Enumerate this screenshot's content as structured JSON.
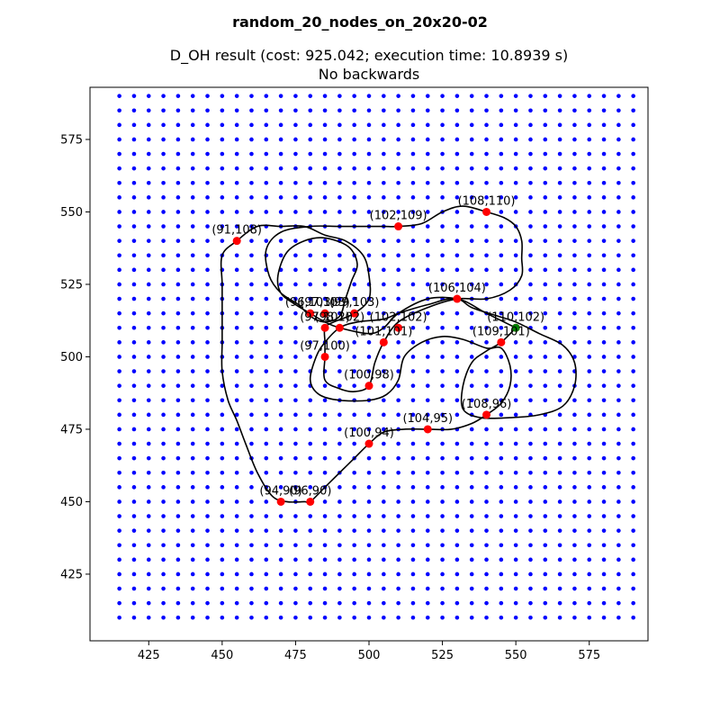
{
  "figure": {
    "suptitle": "random_20_nodes_on_20x20-02",
    "subtitle_line1": "D_OH result (cost: 925.042; execution time: 10.8939 s)",
    "subtitle_line2": "No backwards"
  },
  "chart_data": {
    "type": "scatter",
    "title": "random_20_nodes_on_20x20-02",
    "subtitle": "D_OH result (cost: 925.042; execution time: 10.8939 s)\nNo backwards",
    "xlabel": "",
    "ylabel": "",
    "xlim": [
      405,
      595
    ],
    "ylim": [
      402,
      593
    ],
    "xticks": [
      425,
      450,
      475,
      500,
      525,
      550,
      575
    ],
    "yticks": [
      425,
      450,
      475,
      500,
      525,
      550,
      575
    ],
    "grid": false,
    "legend": "none",
    "colors": {
      "grid_points": "#0000ff",
      "targets": "#ff0000",
      "start": "#008000",
      "path": "#000000"
    },
    "grid_points": {
      "x_start": 415,
      "x_end": 590,
      "x_step": 5,
      "y_start": 410,
      "y_end": 590,
      "y_step": 5
    },
    "targets": [
      {
        "label": "(91,108)",
        "x": 455,
        "y": 540
      },
      {
        "label": "(102,109)",
        "x": 510,
        "y": 545
      },
      {
        "label": "(108,110)",
        "x": 540,
        "y": 550
      },
      {
        "label": "(106,104)",
        "x": 530,
        "y": 520
      },
      {
        "label": "(110,102)",
        "x": 550,
        "y": 510
      },
      {
        "label": "(109,101)",
        "x": 545,
        "y": 505
      },
      {
        "label": "(96,103)",
        "x": 480,
        "y": 515
      },
      {
        "label": "(97,103)",
        "x": 485,
        "y": 515
      },
      {
        "label": "(99,103)",
        "x": 495,
        "y": 515
      },
      {
        "label": "(97,102)",
        "x": 485,
        "y": 510
      },
      {
        "label": "(98,102)",
        "x": 490,
        "y": 510
      },
      {
        "label": "(102,102)",
        "x": 510,
        "y": 510
      },
      {
        "label": "(101,101)",
        "x": 505,
        "y": 505
      },
      {
        "label": "(97,100)",
        "x": 485,
        "y": 500
      },
      {
        "label": "(100,98)",
        "x": 500,
        "y": 490
      },
      {
        "label": "(108,96)",
        "x": 540,
        "y": 480
      },
      {
        "label": "(104,95)",
        "x": 520,
        "y": 475
      },
      {
        "label": "(100,94)",
        "x": 500,
        "y": 470
      },
      {
        "label": "(94,90)",
        "x": 470,
        "y": 450
      },
      {
        "label": "(96,90)",
        "x": 480,
        "y": 450
      }
    ],
    "start": {
      "x": 550,
      "y": 510
    },
    "path": [
      [
        550,
        510
      ],
      [
        545,
        505
      ],
      [
        540,
        502
      ],
      [
        535,
        498
      ],
      [
        532,
        490
      ],
      [
        532,
        482
      ],
      [
        538,
        479
      ],
      [
        548,
        479
      ],
      [
        558,
        480
      ],
      [
        566,
        483
      ],
      [
        570,
        490
      ],
      [
        570,
        498
      ],
      [
        566,
        504
      ],
      [
        558,
        508
      ],
      [
        550,
        512
      ],
      [
        544,
        514
      ],
      [
        535,
        517
      ],
      [
        530,
        520
      ],
      [
        520,
        520
      ],
      [
        510,
        515
      ],
      [
        505,
        510
      ],
      [
        500,
        508
      ],
      [
        490,
        510
      ],
      [
        485,
        512
      ],
      [
        480,
        515
      ],
      [
        475,
        518
      ],
      [
        470,
        522
      ],
      [
        469,
        528
      ],
      [
        472,
        536
      ],
      [
        478,
        540
      ],
      [
        485,
        541
      ],
      [
        493,
        538
      ],
      [
        496,
        532
      ],
      [
        494,
        526
      ],
      [
        492,
        520
      ],
      [
        490,
        514
      ],
      [
        485,
        512
      ],
      [
        480,
        514
      ],
      [
        476,
        518
      ],
      [
        470,
        522
      ],
      [
        466,
        528
      ],
      [
        465,
        537
      ],
      [
        470,
        543
      ],
      [
        480,
        545
      ],
      [
        490,
        545
      ],
      [
        500,
        545
      ],
      [
        505,
        545
      ],
      [
        510,
        545
      ],
      [
        518,
        546
      ],
      [
        525,
        550
      ],
      [
        532,
        552
      ],
      [
        540,
        550
      ],
      [
        546,
        548
      ],
      [
        550,
        545
      ],
      [
        552,
        540
      ],
      [
        552,
        534
      ],
      [
        552,
        528
      ],
      [
        548,
        523
      ],
      [
        540,
        520
      ],
      [
        530,
        520
      ],
      [
        520,
        517
      ],
      [
        510,
        512
      ],
      [
        505,
        505
      ],
      [
        502,
        498
      ],
      [
        500,
        490
      ],
      [
        495,
        488
      ],
      [
        490,
        489
      ],
      [
        485,
        492
      ],
      [
        485,
        500
      ],
      [
        485,
        505
      ],
      [
        485,
        510
      ],
      [
        488,
        512
      ],
      [
        495,
        515
      ],
      [
        500,
        520
      ],
      [
        500,
        528
      ],
      [
        498,
        535
      ],
      [
        492,
        540
      ],
      [
        485,
        542
      ],
      [
        478,
        545
      ],
      [
        470,
        545
      ],
      [
        462,
        545
      ],
      [
        455,
        540
      ],
      [
        450,
        535
      ],
      [
        450,
        525
      ],
      [
        450,
        515
      ],
      [
        450,
        505
      ],
      [
        450,
        495
      ],
      [
        452,
        485
      ],
      [
        455,
        478
      ],
      [
        458,
        470
      ],
      [
        462,
        460
      ],
      [
        467,
        452
      ],
      [
        472,
        450
      ],
      [
        478,
        450
      ],
      [
        480,
        450
      ],
      [
        485,
        455
      ],
      [
        490,
        460
      ],
      [
        495,
        465
      ],
      [
        500,
        470
      ],
      [
        505,
        474
      ],
      [
        512,
        475
      ],
      [
        520,
        475
      ],
      [
        528,
        475
      ],
      [
        535,
        477
      ],
      [
        540,
        480
      ],
      [
        545,
        484
      ],
      [
        548,
        490
      ],
      [
        548,
        497
      ],
      [
        545,
        503
      ],
      [
        540,
        503
      ],
      [
        532,
        506
      ],
      [
        525,
        507
      ],
      [
        518,
        505
      ],
      [
        512,
        500
      ],
      [
        510,
        492
      ],
      [
        506,
        487
      ],
      [
        500,
        485
      ],
      [
        490,
        485
      ],
      [
        483,
        487
      ],
      [
        480,
        492
      ],
      [
        482,
        500
      ],
      [
        485,
        505
      ],
      [
        490,
        510
      ],
      [
        496,
        512
      ],
      [
        505,
        513
      ],
      [
        510,
        515
      ],
      [
        520,
        518
      ],
      [
        530,
        520
      ],
      [
        540,
        515
      ],
      [
        548,
        511
      ],
      [
        550,
        510
      ]
    ]
  }
}
